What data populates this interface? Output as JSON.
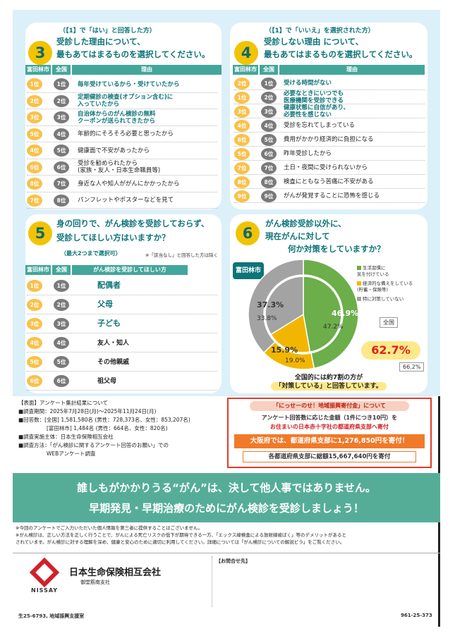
{
  "q3": {
    "num": "3",
    "cond": "（【1】で「はい」と回答した方）",
    "title1": "受診した理由について、",
    "title2": "最もあてはまるものを選択してください。",
    "h_local": "富田林市",
    "h_national": "全国",
    "h_reason": "理由",
    "rows": [
      {
        "l": "1位",
        "n": "1位",
        "t": "毎年受けているから・受けていたから",
        "teal": true
      },
      {
        "l": "2位",
        "n": "2位",
        "t": "定期健診の検査(オプション含む)に\n入っていたから",
        "teal": true
      },
      {
        "l": "3位",
        "n": "3位",
        "t": "自治体からのがん検診の無料\nクーポンが送られてきたから",
        "teal": true
      },
      {
        "l": "5位",
        "n": "4位",
        "t": "年齢的にそろそろ必要と思ったから",
        "teal": false
      },
      {
        "l": "4位",
        "n": "5位",
        "t": "健康面で不安があったから",
        "teal": false
      },
      {
        "l": "6位",
        "n": "6位",
        "t": "受診を勧められたから\n(家族・友人・日本生命職員等)",
        "teal": false
      },
      {
        "l": "8位",
        "n": "7位",
        "t": "身近な人や知人ががんにかかったから",
        "teal": false
      },
      {
        "l": "7位",
        "n": "8位",
        "t": "パンフレットやポスターなどを見て",
        "teal": false
      }
    ]
  },
  "q4": {
    "num": "4",
    "cond": "（【1】で「いいえ」を選択された方）",
    "title1": "受診しない理由 について、",
    "title2": "最もあてはまるものを選択してください。",
    "h_local": "富田林市",
    "h_national": "全国",
    "h_reason": "理由",
    "rows": [
      {
        "l": "2位",
        "n": "1位",
        "t": "受ける時間がない",
        "teal": true
      },
      {
        "l": "1位",
        "n": "2位",
        "t": "必要なときにいつでも\n医療機関を受診できる",
        "teal": true
      },
      {
        "l": "3位",
        "n": "3位",
        "t": "健康状態に自信があり、\n必要性を感じない",
        "teal": true
      },
      {
        "l": "4位",
        "n": "4位",
        "t": "受診を忘れてしまっている",
        "teal": false
      },
      {
        "l": "6位",
        "n": "5位",
        "t": "費用がかかり経済的に負担になる",
        "teal": false
      },
      {
        "l": "5位",
        "n": "6位",
        "t": "昨年受診したから",
        "teal": false
      },
      {
        "l": "7位",
        "n": "7位",
        "t": "土日・夜間に受けられないから",
        "teal": false
      },
      {
        "l": "8位",
        "n": "8位",
        "t": "検査にともなう苦痛に不安がある",
        "teal": false
      },
      {
        "l": "9位",
        "n": "9位",
        "t": "がんが発覚することに恐怖を感じる",
        "teal": false
      }
    ]
  },
  "q5": {
    "num": "5",
    "title1": "身の回りで、がん検診を受診しておらず、",
    "title2": "受診してほしい方はいますか？",
    "sub": "（最大2つまで選択可）",
    "note": "※「該当なし」と回答した方は除く",
    "h_local": "富田林市",
    "h_national": "全国",
    "h_reason": "がん検診を受診してほしい方",
    "rows": [
      {
        "l": "1位",
        "n": "1位",
        "t": "配偶者",
        "big": true
      },
      {
        "l": "2位",
        "n": "2位",
        "t": "父母",
        "big": true
      },
      {
        "l": "3位",
        "n": "3位",
        "t": "子ども",
        "big": true
      },
      {
        "l": "4位",
        "n": "4位",
        "t": "友人・知人",
        "big": false
      },
      {
        "l": "5位",
        "n": "5位",
        "t": "その他親戚",
        "big": false
      },
      {
        "l": "6位",
        "n": "6位",
        "t": "祖父母",
        "big": false
      }
    ]
  },
  "q6": {
    "num": "6",
    "title1": "がん検診受診以外に、",
    "title2": "現在がんに対して",
    "title3": "何か対策をしていますか？",
    "local_tag": "富田林市",
    "national_tag": "全国",
    "legend": [
      "生活習慣に\n気を付けている",
      "経済的な備えをしている\n(貯蓄・保険等)",
      "特に対策していない"
    ],
    "labels": {
      "outer_green": "46.9%",
      "inner_green": "47.2%",
      "outer_yellow": "15.9%",
      "inner_yellow": "19.0%",
      "outer_gray": "37.3%",
      "inner_gray": "33.8%"
    },
    "total_local": "62.7%",
    "total_national": "66.2%",
    "summary1": "全国的には約7割の方が",
    "summary2": "「対策している」と回答しています。"
  },
  "chart_data": {
    "type": "pie",
    "series": [
      {
        "name": "富田林市",
        "values": [
          46.9,
          15.9,
          37.3
        ]
      },
      {
        "name": "全国",
        "values": [
          47.2,
          19.0,
          33.8
        ]
      }
    ],
    "categories": [
      "生活習慣に気を付けている",
      "経済的な備えをしている(貯蓄・保険等)",
      "特に対策していない"
    ],
    "colors": [
      "#6bae4a",
      "#f2b600",
      "#a3a3a3"
    ]
  },
  "survey": {
    "h": "【表面】アンケート集計結果について",
    "l1": "■調査期間：2025年7月28日(月)～2025年11月24日(月)",
    "l2": "■回答数：[全国] 1,581,580名 (男性：728,373名、女性：853,207名)",
    "l3": "[富田林市] 1,484名 (男性：664名、女性：820名)",
    "l4": "■調査実施主体：日本生命保険相互会社",
    "l5": "■調査方法：「がん検診に関するアンケート回答のお願い」での",
    "l6": "WEBアンケート調査"
  },
  "donation": {
    "title": "「にっせーのせ！地域振興寄付金」について",
    "line1": "アンケート回答数に応じた金額（1件につき10円）を",
    "line2": "お住まいの日本赤十字社の都道府県支部へ寄付",
    "big": "大阪府では、都道府県支部に1,276,850円を寄付！",
    "total": "各都道府県支部に総額15,667,640円を寄付"
  },
  "banner": {
    "l1": "誰しもがかかりうる“がん”は、決して他人事ではありません。",
    "l2": "早期発見・早期治療のためにがん検診を受診しましょう！"
  },
  "notes": {
    "n1": "※今回のアンケートでご入力いただいた個人情報を第三者に提供することはございません。",
    "n2": "※がん検診は、正しい方法を正しく行うことで、がんによる死亡リスクの低下が期待できる一方、「エックス線検査による放射線被ばく」等のデメリットがあると",
    "n3": "されています。がん検診に対する理解を深め、健康と安心のために適切に利用してください。詳細については「がん検診についての解説ビラ」をご覧ください。"
  },
  "footer": {
    "company": "日本生命保険相互会社",
    "branch": "御堂筋南支社",
    "brand": "NISSAY",
    "contact": "【お問合せ先】",
    "code_left": "生25-6793, 地域振興支援室",
    "code_right": "961-25-373"
  }
}
